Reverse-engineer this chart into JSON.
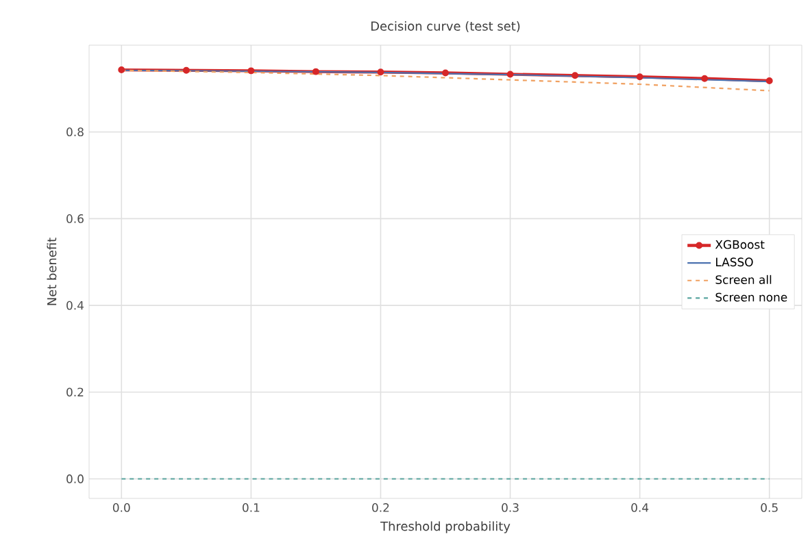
{
  "chart_data": {
    "type": "line",
    "title": "Decision curve (test set)",
    "xlabel": "Threshold probability",
    "ylabel": "Net benefit",
    "xlim": [
      -0.025,
      0.525
    ],
    "ylim": [
      -0.045,
      1.0
    ],
    "xticks": [
      {
        "value": 0,
        "label": "0.0"
      },
      0.1,
      0.2,
      0.3,
      0.4,
      0.5
    ],
    "yticks": [
      {
        "value": 0,
        "label": "0.0"
      },
      0.2,
      0.4,
      0.6,
      0.8
    ],
    "grid": true,
    "legend": "right",
    "series": [
      {
        "name": "XGBoost",
        "color": "#d62728",
        "marker": "circle",
        "line_style": "solid",
        "x": [
          0,
          0.05,
          0.1,
          0.15,
          0.2,
          0.25,
          0.3,
          0.35,
          0.4,
          0.45,
          0.5
        ],
        "values": [
          0.943,
          0.942,
          0.941,
          0.939,
          0.938,
          0.936,
          0.933,
          0.93,
          0.927,
          0.923,
          0.918
        ]
      },
      {
        "name": "LASSO",
        "color": "#4c72b0",
        "marker": "none",
        "line_style": "solid",
        "x": [
          0,
          0.1,
          0.2,
          0.3,
          0.4,
          0.5
        ],
        "values": [
          0.942,
          0.94,
          0.937,
          0.932,
          0.925,
          0.916
        ]
      },
      {
        "name": "Screen all",
        "color": "#f0a060",
        "marker": "none",
        "line_style": "dashed",
        "x": [
          0,
          0.1,
          0.2,
          0.3,
          0.4,
          0.5
        ],
        "values": [
          0.942,
          0.937,
          0.93,
          0.92,
          0.91,
          0.895
        ]
      },
      {
        "name": "Screen none",
        "color": "#5aa5a0",
        "marker": "none",
        "line_style": "dashed",
        "x": [
          0,
          0.5
        ],
        "values": [
          0,
          0
        ]
      }
    ]
  }
}
